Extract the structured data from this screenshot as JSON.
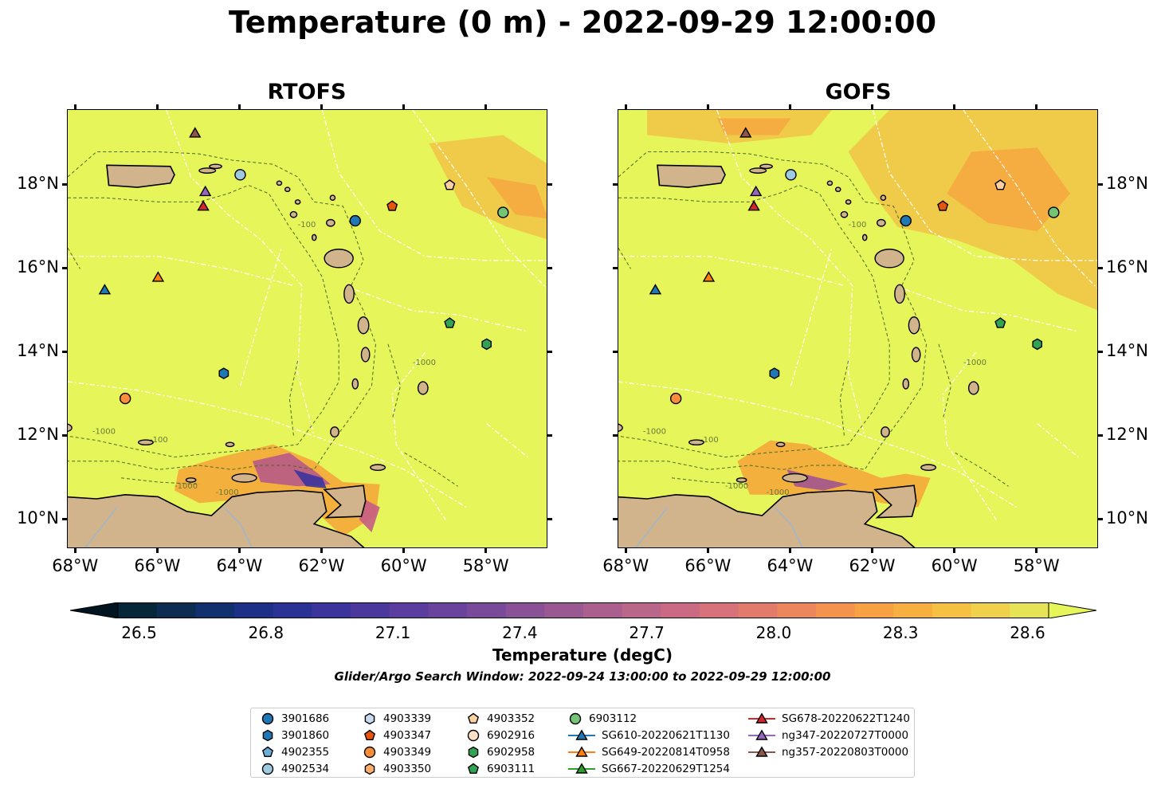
{
  "title": "Temperature (0 m) - 2022-09-29 12:00:00",
  "colors": {
    "land": "#d2b48c",
    "high": "#e6f55a",
    "mid": "#f5a838",
    "low": "#5a3595",
    "contour": "#4d6b1f",
    "eez": "#ffffff",
    "outline": "#000000"
  },
  "chart_data": [
    {
      "type": "heatmap",
      "title": "RTOFS",
      "xlim": [
        -68.2,
        -56.5
      ],
      "ylim": [
        9.3,
        19.8
      ],
      "xticks": [
        "68°W",
        "66°W",
        "64°W",
        "62°W",
        "60°W",
        "58°W"
      ],
      "xtick_values": [
        -68,
        -66,
        -64,
        -62,
        -60,
        -58
      ],
      "yticks": [
        "18°N",
        "16°N",
        "14°N",
        "12°N",
        "10°N"
      ],
      "ytick_values": [
        18,
        16,
        14,
        12,
        10
      ],
      "ytick_side": "left",
      "contour_labels": [
        "-100",
        "-1000"
      ],
      "markers": [
        {
          "id": "3901686",
          "lon": -61.2,
          "lat": 17.15
        },
        {
          "id": "4902534",
          "lon": -64.0,
          "lat": 18.25
        },
        {
          "id": "3901860",
          "lon": -64.4,
          "lat": 13.5
        },
        {
          "id": "4903349",
          "lon": -66.8,
          "lat": 12.9
        },
        {
          "id": "4903347",
          "lon": -60.3,
          "lat": 17.5
        },
        {
          "id": "4903352",
          "lon": -58.9,
          "lat": 18.0
        },
        {
          "id": "6903112",
          "lon": -57.6,
          "lat": 17.35
        },
        {
          "id": "6903111",
          "lon": -58.9,
          "lat": 14.7
        },
        {
          "id": "6902958",
          "lon": -58.0,
          "lat": 14.2
        },
        {
          "id": "SG610-20220621T1130",
          "lon": -67.3,
          "lat": 15.5
        },
        {
          "id": "SG649-20220814T0958",
          "lon": -66.0,
          "lat": 15.8
        },
        {
          "id": "SG678-20220622T1240",
          "lon": -64.9,
          "lat": 17.5
        },
        {
          "id": "ng347-20220727T0000",
          "lon": -64.85,
          "lat": 17.85
        },
        {
          "id": "ng357-20220803T0000",
          "lon": -65.1,
          "lat": 19.25
        }
      ]
    },
    {
      "type": "heatmap",
      "title": "GOFS",
      "xlim": [
        -68.2,
        -56.5
      ],
      "ylim": [
        9.3,
        19.8
      ],
      "xticks": [
        "68°W",
        "66°W",
        "64°W",
        "62°W",
        "60°W",
        "58°W"
      ],
      "xtick_values": [
        -68,
        -66,
        -64,
        -62,
        -60,
        -58
      ],
      "yticks": [
        "18°N",
        "16°N",
        "14°N",
        "12°N",
        "10°N"
      ],
      "ytick_values": [
        18,
        16,
        14,
        12,
        10
      ],
      "ytick_side": "right",
      "contour_labels": [
        "-100",
        "-1000"
      ],
      "markers": [
        {
          "id": "3901686",
          "lon": -61.2,
          "lat": 17.15
        },
        {
          "id": "4902534",
          "lon": -64.0,
          "lat": 18.25
        },
        {
          "id": "3901860",
          "lon": -64.4,
          "lat": 13.5
        },
        {
          "id": "4903349",
          "lon": -66.8,
          "lat": 12.9
        },
        {
          "id": "4903347",
          "lon": -60.3,
          "lat": 17.5
        },
        {
          "id": "4903352",
          "lon": -58.9,
          "lat": 18.0
        },
        {
          "id": "6903112",
          "lon": -57.6,
          "lat": 17.35
        },
        {
          "id": "6903111",
          "lon": -58.9,
          "lat": 14.7
        },
        {
          "id": "6902958",
          "lon": -58.0,
          "lat": 14.2
        },
        {
          "id": "SG610-20220621T1130",
          "lon": -67.3,
          "lat": 15.5
        },
        {
          "id": "SG649-20220814T0958",
          "lon": -66.0,
          "lat": 15.8
        },
        {
          "id": "SG678-20220622T1240",
          "lon": -64.9,
          "lat": 17.5
        },
        {
          "id": "ng347-20220727T0000",
          "lon": -64.85,
          "lat": 17.85
        },
        {
          "id": "ng357-20220803T0000",
          "lon": -65.1,
          "lat": 19.25
        }
      ]
    }
  ],
  "colorbar": {
    "label": "Temperature (degC)",
    "min": 26.45,
    "max": 28.65,
    "ticks": [
      "26.5",
      "26.8",
      "27.1",
      "27.4",
      "27.7",
      "28.0",
      "28.3",
      "28.6"
    ],
    "tick_values": [
      26.5,
      26.8,
      27.1,
      27.4,
      27.7,
      28.0,
      28.3,
      28.6
    ],
    "colors": [
      "#06263a",
      "#0c2c52",
      "#122f6e",
      "#1c3087",
      "#2b3296",
      "#3a349c",
      "#4a389d",
      "#5a3d9e",
      "#6a439c",
      "#7a4a9a",
      "#8a5197",
      "#9a5893",
      "#aa5f8f",
      "#ba658a",
      "#ca6b83",
      "#d8727a",
      "#e37b6c",
      "#ec865d",
      "#f3934e",
      "#f7a143",
      "#f7b03f",
      "#f6c043",
      "#f0d14b",
      "#e6e356"
    ]
  },
  "search_window": "Glider/Argo Search Window: 2022-09-24 13:00:00 to 2022-09-29 12:00:00",
  "legend": {
    "entries": [
      {
        "label": "3901686",
        "shape": "circle",
        "color": "#1f77b4"
      },
      {
        "label": "3901860",
        "shape": "hexagon",
        "color": "#1f77b4"
      },
      {
        "label": "4902355",
        "shape": "pentagon",
        "color": "#6baed6"
      },
      {
        "label": "4902534",
        "shape": "circle",
        "color": "#9ecae1"
      },
      {
        "label": "4903339",
        "shape": "hexagon",
        "color": "#c6dbef"
      },
      {
        "label": "4903347",
        "shape": "pentagon",
        "color": "#e6550d"
      },
      {
        "label": "4903349",
        "shape": "circle",
        "color": "#fd8d3c"
      },
      {
        "label": "4903350",
        "shape": "hexagon",
        "color": "#fdae6b"
      },
      {
        "label": "4903352",
        "shape": "pentagon",
        "color": "#fdd0a2"
      },
      {
        "label": "6902916",
        "shape": "circle",
        "color": "#fde0c5"
      },
      {
        "label": "6902958",
        "shape": "hexagon",
        "color": "#31a354"
      },
      {
        "label": "6903111",
        "shape": "pentagon",
        "color": "#31a354"
      },
      {
        "label": "6903112",
        "shape": "circle",
        "color": "#74c476"
      },
      {
        "label": "SG610-20220621T1130",
        "shape": "triangle-line",
        "color": "#1f77b4"
      },
      {
        "label": "SG649-20220814T0958",
        "shape": "triangle-line",
        "color": "#ff7f0e"
      },
      {
        "label": "SG667-20220629T1254",
        "shape": "triangle-line",
        "color": "#2ca02c"
      },
      {
        "label": "SG678-20220622T1240",
        "shape": "triangle-line",
        "color": "#d62728"
      },
      {
        "label": "ng347-20220727T0000",
        "shape": "triangle-line",
        "color": "#9467bd"
      },
      {
        "label": "ng357-20220803T0000",
        "shape": "triangle-line",
        "color": "#8c564b"
      }
    ]
  }
}
